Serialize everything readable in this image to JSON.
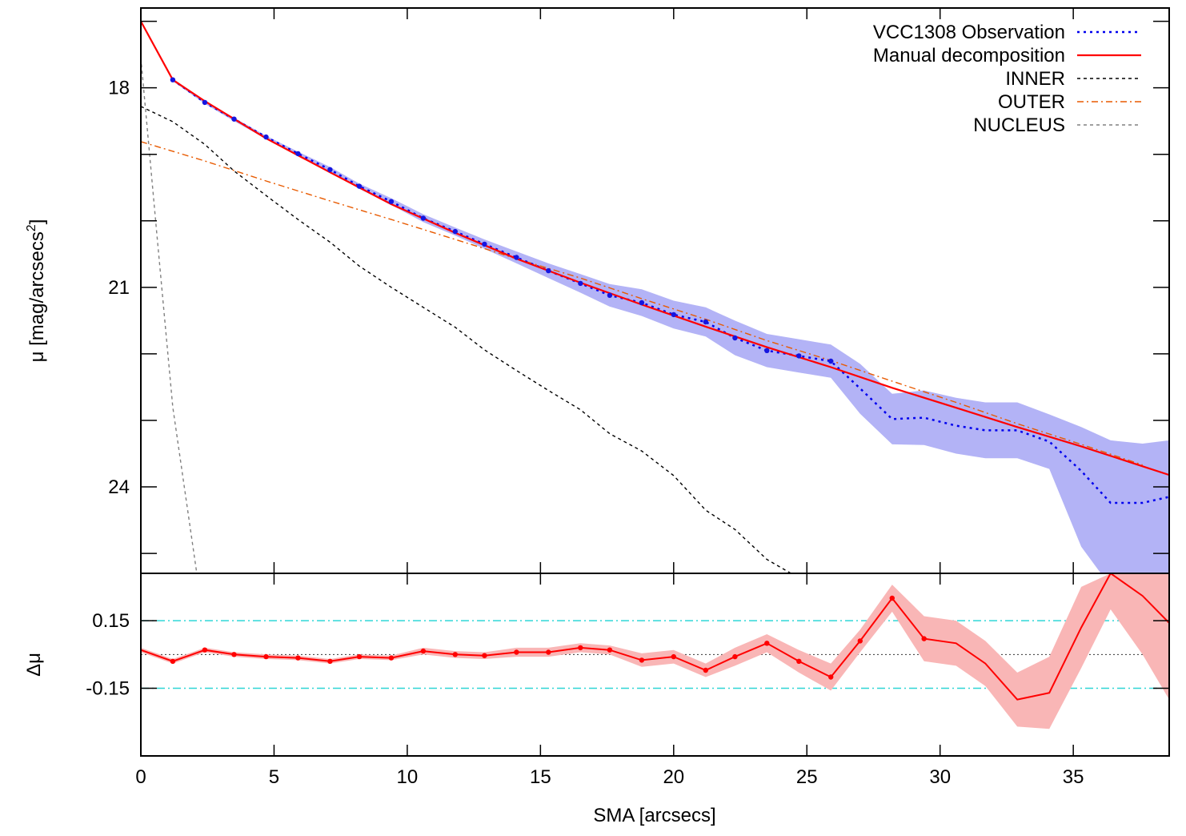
{
  "chart_data": [
    {
      "panel": "main",
      "type": "line",
      "ylabel": "μ [mag/arcsecs",
      "ylabel_sup": "2",
      "ylabel_close": "]",
      "xlim": [
        0,
        38.6
      ],
      "ylim": [
        25.3,
        16.8
      ],
      "y_inverted": true,
      "yticks": [
        18,
        21,
        24
      ],
      "legend_position": "top-right",
      "series": [
        {
          "name": "VCC1308 Observation",
          "style": "dotted",
          "color": "#0000ee",
          "markers": true,
          "x": [
            1.2,
            2.4,
            3.5,
            4.7,
            5.9,
            7.1,
            8.2,
            9.4,
            10.6,
            11.8,
            12.9,
            14.1,
            15.3,
            16.5,
            17.6,
            18.8,
            20.0,
            21.2,
            22.3,
            23.5,
            24.7,
            25.9,
            27.0,
            28.2,
            29.4,
            30.6,
            31.7,
            32.9,
            34.1,
            35.3,
            36.4,
            37.6,
            38.6
          ],
          "y": [
            17.88,
            18.22,
            18.47,
            18.74,
            18.99,
            19.23,
            19.48,
            19.71,
            19.96,
            20.16,
            20.35,
            20.55,
            20.75,
            20.94,
            21.12,
            21.23,
            21.41,
            21.52,
            21.76,
            21.95,
            22.03,
            22.11,
            22.52,
            22.98,
            22.96,
            23.08,
            23.15,
            23.15,
            23.32,
            23.76,
            24.24,
            24.24,
            24.15
          ],
          "band_low": [
            17.86,
            18.2,
            18.45,
            18.72,
            18.96,
            19.19,
            19.44,
            19.66,
            19.9,
            20.1,
            20.28,
            20.46,
            20.64,
            20.8,
            20.95,
            21.03,
            21.2,
            21.3,
            21.5,
            21.7,
            21.78,
            21.86,
            22.15,
            22.6,
            22.55,
            22.66,
            22.73,
            22.73,
            22.91,
            23.1,
            23.3,
            23.35,
            23.3
          ],
          "band_high": [
            17.9,
            18.24,
            18.5,
            18.77,
            19.02,
            19.27,
            19.52,
            19.76,
            20.02,
            20.22,
            20.42,
            20.64,
            20.86,
            21.08,
            21.29,
            21.43,
            21.62,
            21.74,
            22.02,
            22.2,
            22.28,
            22.36,
            22.9,
            23.36,
            23.37,
            23.5,
            23.57,
            23.57,
            23.73,
            24.9,
            25.5,
            25.5,
            25.3
          ]
        },
        {
          "name": "Manual decomposition",
          "style": "solid",
          "color": "#ff0000",
          "x": [
            0,
            1.2,
            2.4,
            4.7,
            7.1,
            9.4,
            11.8,
            14.1,
            16.5,
            18.8,
            21.2,
            23.5,
            25.9,
            28.2,
            30.6,
            32.9,
            35.3,
            37.6,
            38.6
          ],
          "y": [
            17.0,
            17.88,
            18.2,
            18.76,
            19.27,
            19.75,
            20.18,
            20.57,
            20.93,
            21.26,
            21.59,
            21.9,
            22.2,
            22.51,
            22.81,
            23.1,
            23.39,
            23.69,
            23.82
          ]
        },
        {
          "name": "INNER",
          "style": "dashed",
          "color": "#000000",
          "x": [
            0,
            1.2,
            2.4,
            3.5,
            4.7,
            5.9,
            7.1,
            8.2,
            9.4,
            10.6,
            11.8,
            12.9,
            14.1,
            15.3,
            16.5,
            17.6,
            18.8,
            20.0,
            21.2,
            22.3,
            23.5,
            24.4
          ],
          "y": [
            18.28,
            18.51,
            18.85,
            19.25,
            19.62,
            19.98,
            20.32,
            20.68,
            21.0,
            21.3,
            21.6,
            21.94,
            22.25,
            22.55,
            22.84,
            23.2,
            23.46,
            23.83,
            24.35,
            24.64,
            25.09,
            25.3
          ]
        },
        {
          "name": "OUTER",
          "style": "dash-dot",
          "color": "#e85a00",
          "x": [
            0,
            2.4,
            4.7,
            7.1,
            9.4,
            11.8,
            14.1,
            16.5,
            18.8,
            21.2,
            23.5,
            25.9,
            28.2,
            30.6,
            32.9,
            35.3,
            37.6
          ],
          "y": [
            18.81,
            19.1,
            19.4,
            19.7,
            19.98,
            20.28,
            20.57,
            20.86,
            21.17,
            21.48,
            21.8,
            22.1,
            22.41,
            22.73,
            23.05,
            23.36,
            23.67
          ]
        },
        {
          "name": "NUCLEUS",
          "style": "dashed",
          "color": "#808080",
          "x": [
            0,
            0.6,
            1.2,
            2.1
          ],
          "y": [
            17.55,
            20.2,
            22.8,
            25.3
          ]
        }
      ]
    },
    {
      "panel": "residuals",
      "type": "line",
      "xlabel": "SMA [arcsecs]",
      "ylabel": "Δμ",
      "xlim": [
        0,
        38.6
      ],
      "ylim": [
        -0.45,
        0.36
      ],
      "xticks": [
        0,
        5,
        10,
        15,
        20,
        25,
        30,
        35
      ],
      "yticks": [
        0.15,
        -0.15
      ],
      "yticklabels": [
        "0.15",
        "-0.15"
      ],
      "reference_lines": [
        0.15,
        -0.15,
        0
      ],
      "series": [
        {
          "style": "solid",
          "color": "#ff0000",
          "markers": true,
          "x": [
            0,
            1.2,
            2.4,
            3.5,
            4.7,
            5.9,
            7.1,
            8.2,
            9.4,
            10.6,
            11.8,
            12.9,
            14.1,
            15.3,
            16.5,
            17.6,
            18.8,
            20.0,
            21.2,
            22.3,
            23.5,
            24.7,
            25.9,
            27.0,
            28.2,
            29.4,
            30.6,
            31.7,
            32.9,
            34.1,
            35.3,
            36.4,
            37.6,
            38.6
          ],
          "y": [
            0.02,
            -0.03,
            0.02,
            0.0,
            -0.01,
            -0.015,
            -0.03,
            -0.01,
            -0.015,
            0.015,
            0.0,
            -0.005,
            0.01,
            0.01,
            0.03,
            0.02,
            -0.025,
            -0.01,
            -0.07,
            -0.01,
            0.05,
            -0.03,
            -0.1,
            0.06,
            0.25,
            0.07,
            0.05,
            -0.04,
            -0.2,
            -0.17,
            0.12,
            0.36,
            0.26,
            0.14
          ],
          "band_low": [
            0.01,
            -0.04,
            0.01,
            -0.01,
            -0.02,
            -0.025,
            -0.04,
            -0.02,
            -0.025,
            0.0,
            -0.015,
            -0.02,
            -0.01,
            -0.01,
            0.01,
            0.0,
            -0.055,
            -0.04,
            -0.1,
            -0.05,
            0.01,
            -0.08,
            -0.16,
            0.01,
            0.19,
            -0.03,
            -0.05,
            -0.14,
            -0.32,
            -0.33,
            -0.06,
            0.2,
            0.0,
            -0.2
          ],
          "band_high": [
            0.03,
            -0.02,
            0.03,
            0.01,
            0.0,
            -0.005,
            -0.02,
            0.0,
            -0.005,
            0.03,
            0.015,
            0.01,
            0.03,
            0.03,
            0.05,
            0.04,
            0.005,
            0.02,
            -0.04,
            0.03,
            0.09,
            0.02,
            -0.04,
            0.11,
            0.31,
            0.17,
            0.15,
            0.06,
            -0.08,
            -0.01,
            0.3,
            0.36,
            0.36,
            0.36
          ]
        }
      ]
    }
  ]
}
